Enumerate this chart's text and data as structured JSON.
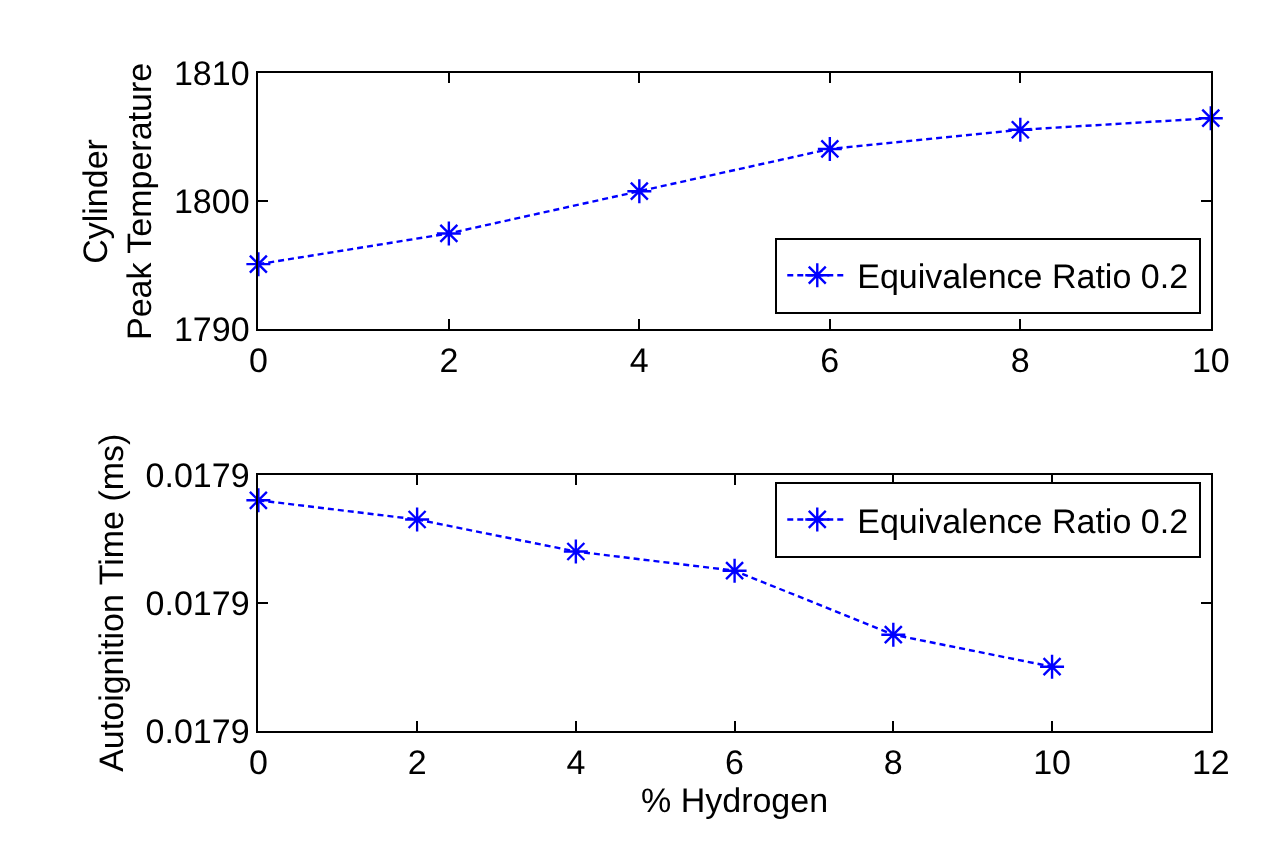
{
  "chart_data": [
    {
      "type": "line",
      "x": [
        0,
        2,
        4,
        6,
        8,
        10
      ],
      "ylabel": "Cylinder\nPeak Temperature",
      "xlim": [
        0,
        10
      ],
      "xticks": [
        0,
        2,
        4,
        6,
        8,
        10
      ],
      "ylim": [
        1790,
        1810
      ],
      "yticks": [
        1790,
        1800,
        1810
      ],
      "marker": "cross",
      "line_style": "dashed",
      "legend": "bottom right",
      "grid": false,
      "series": [
        {
          "name": "Equivalence Ratio 0.2",
          "color": "#0000ff",
          "values": [
            1795.1,
            1797.5,
            1800.8,
            1804.1,
            1805.6,
            1806.5
          ]
        }
      ]
    },
    {
      "type": "line",
      "x": [
        0,
        2,
        4,
        6,
        8,
        10
      ],
      "xlabel": "% Hydrogen",
      "ylabel": "Autoignition Time (ms)",
      "xlim": [
        0,
        12
      ],
      "xticks": [
        0,
        2,
        4,
        6,
        8,
        10,
        12
      ],
      "ylim": [
        0.01786,
        0.0179
      ],
      "yticks": [
        {
          "value": 0.01786,
          "label": "0.0179"
        },
        {
          "value": 0.01788,
          "label": "0.0179"
        },
        {
          "value": 0.0179,
          "label": "0.0179"
        }
      ],
      "marker": "cross",
      "line_style": "dashed",
      "legend": "top right",
      "grid": false,
      "series": [
        {
          "name": "Equivalence Ratio 0.2",
          "color": "#0000ff",
          "values": [
            0.017896,
            0.017893,
            0.017888,
            0.017885,
            0.017875,
            0.01787
          ]
        }
      ]
    }
  ]
}
